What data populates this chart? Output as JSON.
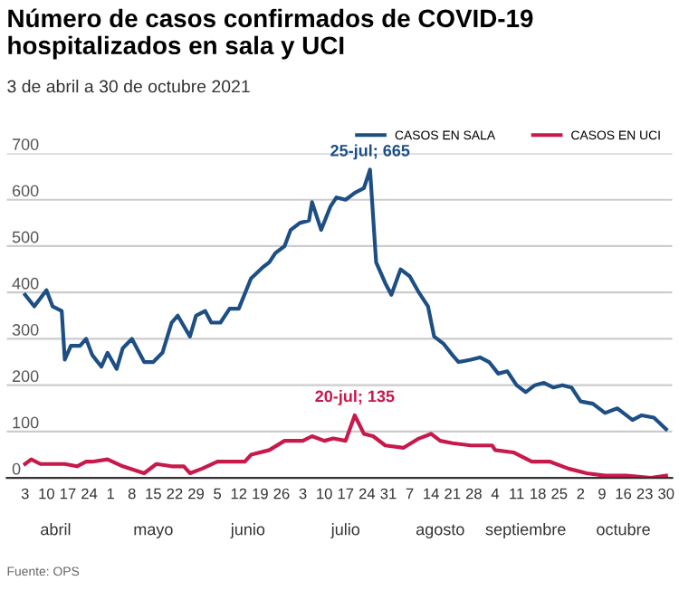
{
  "chart_data": {
    "type": "line",
    "title": "Número de casos confirmados de COVID-19\nhospitalizados en sala y UCI",
    "subtitle": "3 de abril a 30 de octubre 2021",
    "legend": "top right",
    "grid": "y",
    "marker": "none",
    "line_style": "solid",
    "xlim": [
      "2021-03-28",
      "2021-11-01"
    ],
    "xticks": [
      {
        "value": "2021-04-03",
        "label": "3"
      },
      {
        "value": "2021-04-10",
        "label": "10"
      },
      {
        "value": "2021-04-17",
        "label": "17"
      },
      {
        "value": "2021-04-24",
        "label": "24"
      },
      {
        "value": "2021-05-01",
        "label": "1"
      },
      {
        "value": "2021-05-08",
        "label": "8"
      },
      {
        "value": "2021-05-15",
        "label": "15"
      },
      {
        "value": "2021-05-22",
        "label": "22"
      },
      {
        "value": "2021-05-29",
        "label": "29"
      },
      {
        "value": "2021-06-05",
        "label": "5"
      },
      {
        "value": "2021-06-12",
        "label": "12"
      },
      {
        "value": "2021-06-19",
        "label": "19"
      },
      {
        "value": "2021-06-26",
        "label": "26"
      },
      {
        "value": "2021-07-03",
        "label": "3"
      },
      {
        "value": "2021-07-10",
        "label": "10"
      },
      {
        "value": "2021-07-17",
        "label": "17"
      },
      {
        "value": "2021-07-24",
        "label": "24"
      },
      {
        "value": "2021-07-31",
        "label": "31"
      },
      {
        "value": "2021-08-07",
        "label": "7"
      },
      {
        "value": "2021-08-14",
        "label": "14"
      },
      {
        "value": "2021-08-21",
        "label": "21"
      },
      {
        "value": "2021-08-28",
        "label": "28"
      },
      {
        "value": "2021-09-04",
        "label": "4"
      },
      {
        "value": "2021-09-11",
        "label": "11"
      },
      {
        "value": "2021-09-18",
        "label": "18"
      },
      {
        "value": "2021-09-25",
        "label": "25"
      },
      {
        "value": "2021-10-02",
        "label": "2"
      },
      {
        "value": "2021-10-09",
        "label": "9"
      },
      {
        "value": "2021-10-16",
        "label": "16"
      },
      {
        "value": "2021-10-23",
        "label": "23"
      },
      {
        "value": "2021-10-30",
        "label": "30"
      }
    ],
    "ylim": [
      0,
      700
    ],
    "yticks": [
      0,
      100,
      200,
      300,
      400,
      500,
      600,
      700
    ],
    "series": [
      {
        "name": "CASOS EN SALA",
        "color": "#1d4f85",
        "x": [
          "2021-04-03",
          "2021-04-06",
          "2021-04-10",
          "2021-04-12",
          "2021-04-15",
          "2021-04-16",
          "2021-04-18",
          "2021-04-21",
          "2021-04-23",
          "2021-04-25",
          "2021-04-28",
          "2021-04-30",
          "2021-05-03",
          "2021-05-05",
          "2021-05-08",
          "2021-05-12",
          "2021-05-15",
          "2021-05-18",
          "2021-05-21",
          "2021-05-23",
          "2021-05-27",
          "2021-05-29",
          "2021-06-01",
          "2021-06-03",
          "2021-06-06",
          "2021-06-09",
          "2021-06-12",
          "2021-06-16",
          "2021-06-20",
          "2021-06-22",
          "2021-06-24",
          "2021-06-27",
          "2021-06-29",
          "2021-07-02",
          "2021-07-05",
          "2021-07-06",
          "2021-07-09",
          "2021-07-12",
          "2021-07-14",
          "2021-07-17",
          "2021-07-20",
          "2021-07-23",
          "2021-07-25",
          "2021-07-27",
          "2021-07-30",
          "2021-08-01",
          "2021-08-04",
          "2021-08-07",
          "2021-08-10",
          "2021-08-13",
          "2021-08-15",
          "2021-08-18",
          "2021-08-21",
          "2021-08-23",
          "2021-08-27",
          "2021-08-30",
          "2021-09-02",
          "2021-09-05",
          "2021-09-08",
          "2021-09-11",
          "2021-09-14",
          "2021-09-17",
          "2021-09-20",
          "2021-09-23",
          "2021-09-26",
          "2021-09-29",
          "2021-10-02",
          "2021-10-06",
          "2021-10-10",
          "2021-10-14",
          "2021-10-16",
          "2021-10-19",
          "2021-10-22",
          "2021-10-26",
          "2021-10-30"
        ],
        "values": [
          395,
          370,
          405,
          370,
          360,
          255,
          285,
          285,
          300,
          265,
          240,
          270,
          235,
          280,
          300,
          250,
          250,
          270,
          335,
          350,
          305,
          350,
          360,
          335,
          335,
          365,
          365,
          430,
          455,
          465,
          485,
          500,
          535,
          550,
          555,
          595,
          535,
          585,
          605,
          600,
          615,
          625,
          665,
          465,
          420,
          395,
          450,
          435,
          400,
          370,
          305,
          290,
          265,
          250,
          255,
          260,
          250,
          225,
          230,
          200,
          185,
          200,
          205,
          195,
          200,
          195,
          165,
          160,
          140,
          150,
          140,
          125,
          135,
          130,
          105
        ]
      },
      {
        "name": "CASOS EN UCI",
        "color": "#c8194b",
        "x": [
          "2021-04-03",
          "2021-04-05",
          "2021-04-08",
          "2021-04-16",
          "2021-04-20",
          "2021-04-23",
          "2021-04-25",
          "2021-04-30",
          "2021-05-05",
          "2021-05-12",
          "2021-05-16",
          "2021-05-21",
          "2021-05-25",
          "2021-05-27",
          "2021-05-31",
          "2021-06-05",
          "2021-06-08",
          "2021-06-14",
          "2021-06-16",
          "2021-06-22",
          "2021-06-27",
          "2021-07-03",
          "2021-07-06",
          "2021-07-10",
          "2021-07-13",
          "2021-07-17",
          "2021-07-20",
          "2021-07-23",
          "2021-07-26",
          "2021-07-30",
          "2021-08-05",
          "2021-08-10",
          "2021-08-14",
          "2021-08-17",
          "2021-08-21",
          "2021-08-27",
          "2021-09-03",
          "2021-09-04",
          "2021-09-10",
          "2021-09-16",
          "2021-09-22",
          "2021-09-28",
          "2021-10-04",
          "2021-10-10",
          "2021-10-17",
          "2021-10-25",
          "2021-10-30"
        ],
        "values": [
          30,
          40,
          30,
          30,
          25,
          35,
          35,
          40,
          25,
          10,
          30,
          25,
          25,
          10,
          20,
          35,
          35,
          35,
          50,
          60,
          80,
          80,
          90,
          80,
          85,
          80,
          135,
          95,
          90,
          70,
          65,
          85,
          95,
          80,
          75,
          70,
          70,
          60,
          55,
          35,
          35,
          20,
          10,
          5,
          5,
          0,
          5
        ]
      }
    ],
    "annotations": [
      {
        "text": "25-jul; 665",
        "x": "2021-07-25",
        "y": 665
      },
      {
        "text": "20-jul; 135",
        "x": "2021-07-20",
        "y": 135
      },
      "Fuente: OPS"
    ],
    "x2lim": [
      "2021-03-28",
      "2021-11-01"
    ],
    "x2ticks": [
      {
        "value": "2021-04-13",
        "label": "abril"
      },
      {
        "value": "2021-05-15",
        "label": "mayo"
      },
      {
        "value": "2021-06-15",
        "label": "junio"
      },
      {
        "value": "2021-07-17",
        "label": "julio"
      },
      {
        "value": "2021-08-17",
        "label": "agosto"
      },
      {
        "value": "2021-09-14",
        "label": "septiembre"
      },
      {
        "value": "2021-10-16",
        "label": "octubre"
      }
    ]
  }
}
